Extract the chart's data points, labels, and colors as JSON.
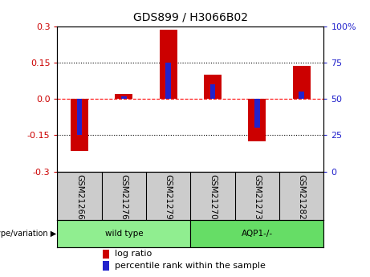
{
  "title": "GDS899 / H3066B02",
  "samples": [
    "GSM21266",
    "GSM21276",
    "GSM21279",
    "GSM21270",
    "GSM21273",
    "GSM21282"
  ],
  "log_ratio": [
    -0.215,
    0.02,
    0.285,
    0.1,
    -0.175,
    0.135
  ],
  "pct_rank": [
    25,
    52,
    75,
    60,
    30,
    55
  ],
  "groups": [
    {
      "label": "wild type",
      "start": 0,
      "end": 3,
      "color": "#90EE90"
    },
    {
      "label": "AQP1-/-",
      "start": 3,
      "end": 6,
      "color": "#66DD66"
    }
  ],
  "bar_color_red": "#CC0000",
  "bar_color_blue": "#2222CC",
  "bar_width": 0.4,
  "blue_bar_width": 0.12,
  "ylim_left": [
    -0.3,
    0.3
  ],
  "ylim_right": [
    0,
    100
  ],
  "yticks_left": [
    -0.3,
    -0.15,
    0.0,
    0.15,
    0.3
  ],
  "yticks_right": [
    0,
    25,
    50,
    75,
    100
  ],
  "ytick_labels_right": [
    "0",
    "25",
    "50",
    "75",
    "100%"
  ],
  "hline_vals": [
    -0.15,
    0.0,
    0.15
  ],
  "hline_styles": [
    "dotted",
    "dashed",
    "dotted"
  ],
  "hline_colors": [
    "black",
    "red",
    "black"
  ],
  "legend_red": "log ratio",
  "legend_blue": "percentile rank within the sample",
  "background_color": "#ffffff",
  "sample_label_bg": "#cccccc",
  "tick_color_left": "#CC0000",
  "tick_color_right": "#2222CC",
  "title_fontsize": 10,
  "axis_fontsize": 8,
  "label_fontsize": 7.5,
  "legend_fontsize": 8
}
